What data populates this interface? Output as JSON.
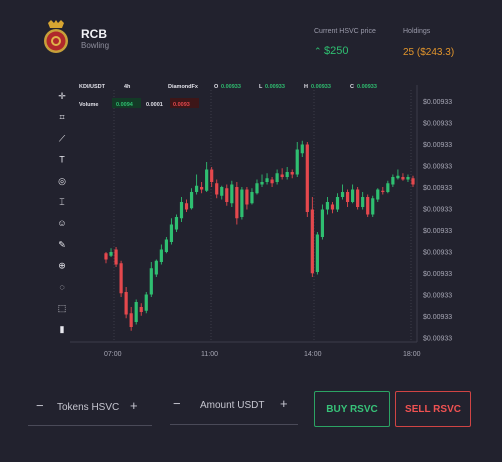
{
  "header": {
    "name": "RCB",
    "subtitle": "Bowling",
    "price_label": "Current HSVC price",
    "price_value": "$250",
    "holdings_label": "Holdings",
    "holdings_value": "25 ($243.3)"
  },
  "chart_info": {
    "pair": "KDI/USDT",
    "interval": "4h",
    "source": "DiamondFx",
    "open_label": "O",
    "open": "0.00933",
    "low_label": "L",
    "low": "0.00933",
    "high_label": "H",
    "high": "0.00933",
    "close_label": "C",
    "close": "0.00933",
    "volume_label": "Volume",
    "vol1": "0.0094",
    "vol2": "0.0001",
    "vol3": "0.0093"
  },
  "tools": [
    "crosshair-icon",
    "node-icon",
    "trend-line-icon",
    "text-icon",
    "fib-icon",
    "measure-icon",
    "emoji-icon",
    "pencil-icon",
    "zoom-icon",
    "eye-off-icon",
    "lock-icon",
    "trash-icon"
  ],
  "chart_data": {
    "type": "candlestick",
    "y_ticks": [
      "$0.00933",
      "$0.00933",
      "$0.00933",
      "$0.00933",
      "$0.00933",
      "$0.00933",
      "$0.00933",
      "$0.00933",
      "$0.00933",
      "$0.00933",
      "$0.00933",
      "$0.00933"
    ],
    "x_ticks": [
      "07:00",
      "11:00",
      "14:00",
      "18:00"
    ]
  },
  "form": {
    "minus": "−",
    "plus": "+",
    "tokens_label": "Tokens HSVC",
    "amount_label": "Amount USDT",
    "buy_label": "BUY RSVC",
    "sell_label": "SELL RSVC"
  },
  "colors": {
    "up": "#2fbf71",
    "down": "#e5484d",
    "bg": "#22222e",
    "holdings": "#e2952c"
  }
}
